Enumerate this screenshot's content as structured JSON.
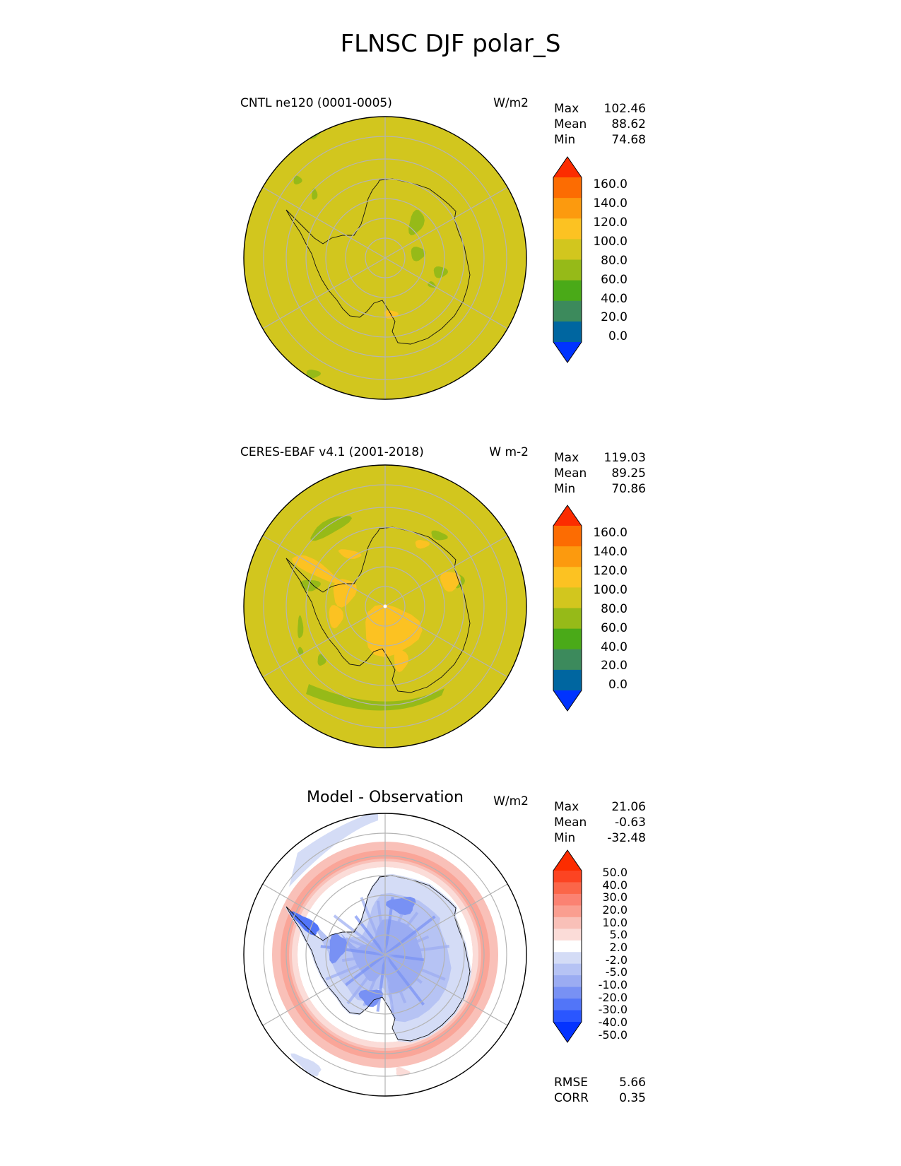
{
  "figure_title": "FLNSC DJF polar_S",
  "colors": {
    "field_levels": [
      "#0033ff",
      "#0066a0",
      "#3c8a5c",
      "#4aaa18",
      "#96ba18",
      "#d2c61e",
      "#fcc222",
      "#fc9a0e",
      "#fc6c02",
      "#fc2c00"
    ],
    "diff_levels": [
      "#0433ff",
      "#2a56ff",
      "#5275f8",
      "#7891f4",
      "#9bacf2",
      "#b6c3f4",
      "#d4dcf6",
      "#ffffff",
      "#fbdcd8",
      "#f9c0b8",
      "#fa9e90",
      "#fb8272",
      "#fb6649",
      "#fc4422",
      "#fc2c00"
    ],
    "grid": "#b4b4b4",
    "coast": "#111111"
  },
  "panels": [
    {
      "id": "test",
      "title": "CNTL ne120 (0001-0005)",
      "units": "W/m2",
      "stats": [
        {
          "label": "Max",
          "value": "102.46"
        },
        {
          "label": "Mean",
          "value": "88.62"
        },
        {
          "label": "Min",
          "value": "74.68"
        }
      ],
      "colorbar_labels": [
        "160.0",
        "140.0",
        "120.0",
        "100.0",
        "80.0",
        "60.0",
        "40.0",
        "20.0",
        "0.0"
      ]
    },
    {
      "id": "ref",
      "title": "CERES-EBAF v4.1 (2001-2018)",
      "units": "W m-2",
      "stats": [
        {
          "label": "Max",
          "value": "119.03"
        },
        {
          "label": "Mean",
          "value": "89.25"
        },
        {
          "label": "Min",
          "value": "70.86"
        }
      ],
      "colorbar_labels": [
        "160.0",
        "140.0",
        "120.0",
        "100.0",
        "80.0",
        "60.0",
        "40.0",
        "20.0",
        "0.0"
      ]
    },
    {
      "id": "diff",
      "title": "Model - Observation",
      "units": "W/m2",
      "stats": [
        {
          "label": "Max",
          "value": "21.06"
        },
        {
          "label": "Mean",
          "value": "-0.63"
        },
        {
          "label": "Min",
          "value": "-32.48"
        }
      ],
      "colorbar_labels": [
        "50.0",
        "40.0",
        "30.0",
        "20.0",
        "10.0",
        "5.0",
        "2.0",
        "-2.0",
        "-5.0",
        "-10.0",
        "-20.0",
        "-30.0",
        "-40.0",
        "-50.0"
      ],
      "extra_stats": [
        {
          "label": "RMSE",
          "value": "5.66"
        },
        {
          "label": "CORR",
          "value": "0.35"
        }
      ]
    }
  ],
  "chart_data": [
    {
      "type": "heatmap",
      "projection": "polar stereographic (south)",
      "title": "CNTL ne120 (0001-0005)",
      "units": "W/m2",
      "variable": "FLNSC",
      "season": "DJF",
      "levels": [
        0,
        20,
        40,
        60,
        80,
        100,
        120,
        140,
        160
      ],
      "extend": "both",
      "dominant_range": [
        80,
        100
      ],
      "stats": {
        "max": 102.46,
        "mean": 88.62,
        "min": 74.68
      }
    },
    {
      "type": "heatmap",
      "projection": "polar stereographic (south)",
      "title": "CERES-EBAF v4.1 (2001-2018)",
      "units": "W m-2",
      "variable": "FLNSC",
      "season": "DJF",
      "levels": [
        0,
        20,
        40,
        60,
        80,
        100,
        120,
        140,
        160
      ],
      "extend": "both",
      "dominant_range": [
        80,
        100
      ],
      "stats": {
        "max": 119.03,
        "mean": 89.25,
        "min": 70.86
      }
    },
    {
      "type": "heatmap",
      "projection": "polar stereographic (south)",
      "title": "Model - Observation",
      "units": "W/m2",
      "levels": [
        -50,
        -40,
        -30,
        -20,
        -10,
        -5,
        -2,
        2,
        5,
        10,
        20,
        30,
        40,
        50
      ],
      "extend": "both",
      "stats": {
        "max": 21.06,
        "mean": -0.63,
        "min": -32.48,
        "rmse": 5.66,
        "corr": 0.35
      }
    }
  ]
}
